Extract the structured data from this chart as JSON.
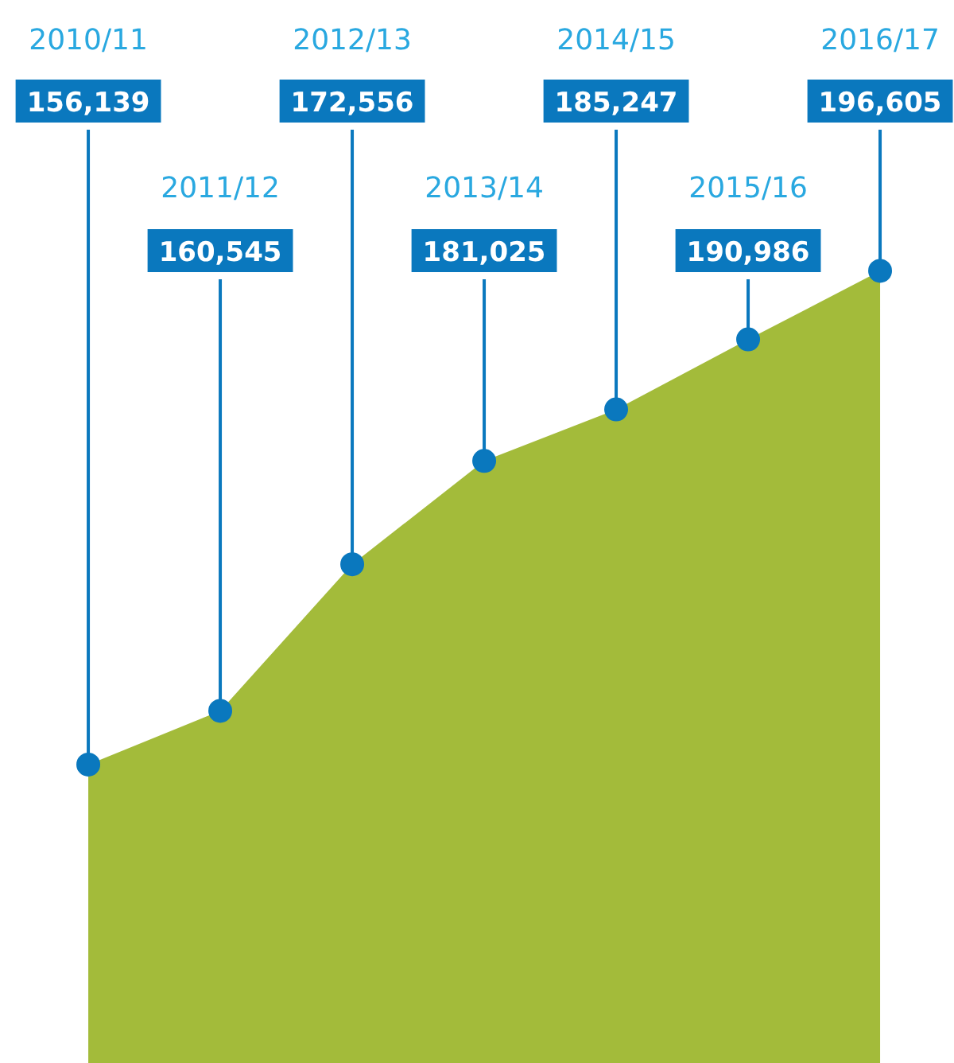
{
  "chart_data": {
    "type": "area",
    "categories": [
      "2010/11",
      "2011/12",
      "2012/13",
      "2013/14",
      "2014/15",
      "2015/16",
      "2016/17"
    ],
    "series": [
      {
        "color": "#a3bb3a",
        "values": [
          156139,
          160545,
          172556,
          181025,
          185247,
          190986,
          196605
        ],
        "value_labels": [
          "156,139",
          "160,545",
          "172,556",
          "181,025",
          "185,247",
          "190,986",
          "196,605"
        ]
      }
    ],
    "marker": "circle"
  }
}
